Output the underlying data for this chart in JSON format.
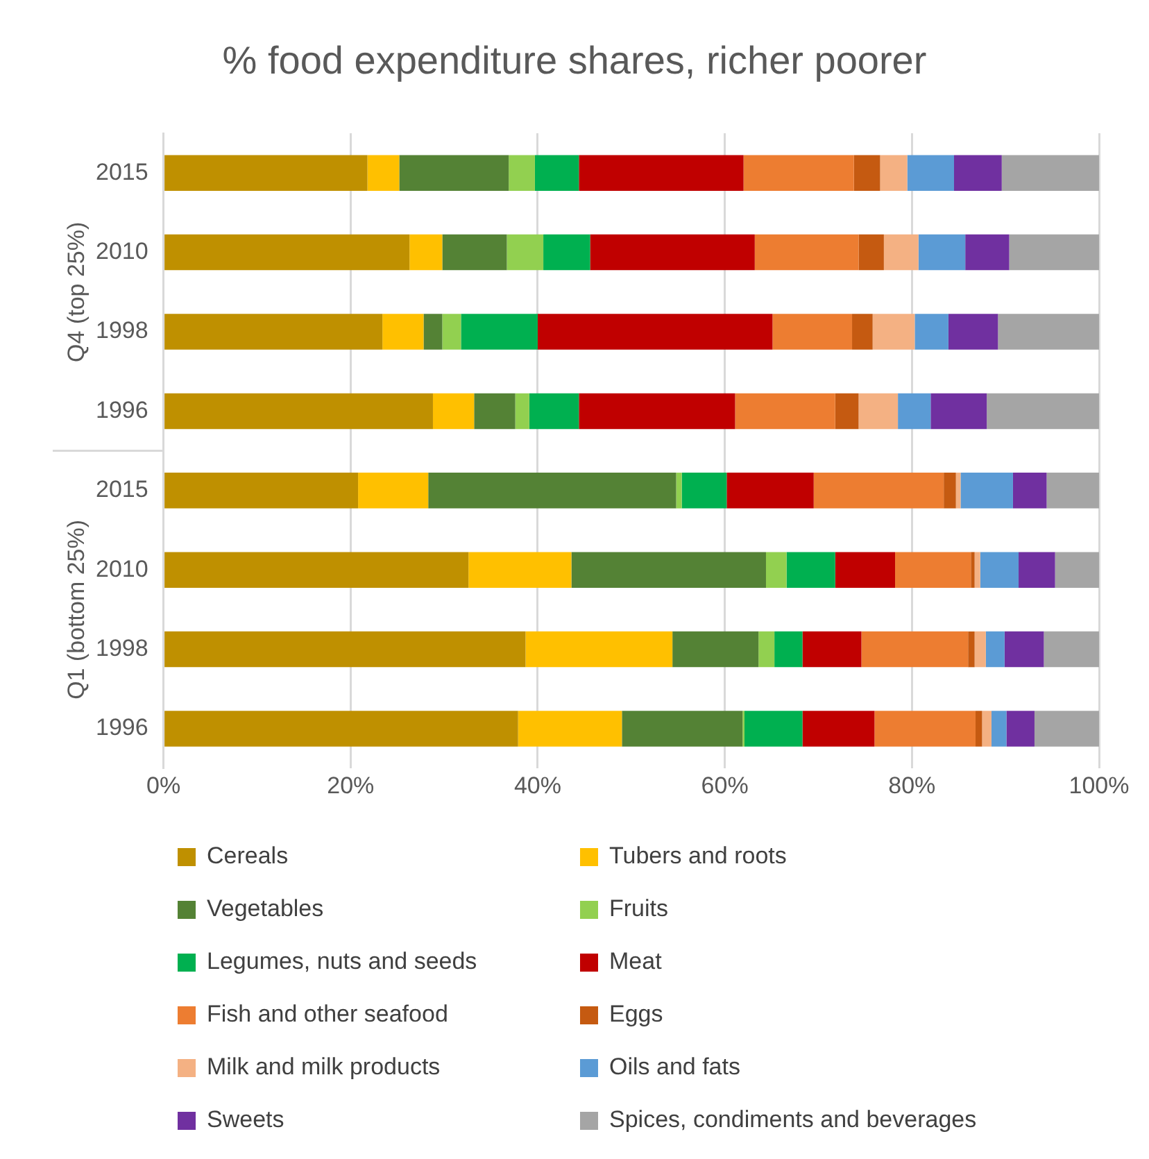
{
  "chart_data": {
    "type": "bar",
    "orientation": "horizontal",
    "stacked": true,
    "title": "% food expenditure shares, richer poorer",
    "categories": [
      "2015",
      "2010",
      "1998",
      "1996",
      "2015",
      "2010",
      "1998",
      "1996"
    ],
    "annotations": [
      "Q4 (top 25%)",
      "Q1 (bottom 25%)"
    ],
    "series": [
      {
        "name": "Cereals",
        "color": "#bf9000",
        "values": [
          21.8,
          26.3,
          23.4,
          28.8,
          20.8,
          32.6,
          38.7,
          37.9
        ]
      },
      {
        "name": "Tubers and roots",
        "color": "#ffc000",
        "values": [
          3.4,
          3.5,
          4.4,
          4.4,
          7.5,
          11.0,
          15.7,
          11.1
        ]
      },
      {
        "name": "Vegetables",
        "color": "#548235",
        "values": [
          11.7,
          6.9,
          2.0,
          4.4,
          26.5,
          20.8,
          9.2,
          12.9
        ]
      },
      {
        "name": "Fruits",
        "color": "#92d050",
        "values": [
          2.8,
          3.9,
          2.0,
          1.5,
          0.6,
          2.2,
          1.7,
          0.2
        ]
      },
      {
        "name": "Legumes, nuts and seeds",
        "color": "#00b050",
        "values": [
          4.7,
          5.0,
          8.2,
          5.3,
          4.8,
          5.2,
          3.0,
          6.2
        ]
      },
      {
        "name": "Meat",
        "color": "#c00000",
        "values": [
          17.6,
          17.6,
          25.1,
          16.7,
          9.3,
          6.4,
          6.3,
          7.7
        ]
      },
      {
        "name": "Fish and other seafood",
        "color": "#ed7d31",
        "values": [
          11.8,
          11.1,
          8.5,
          10.7,
          13.9,
          8.1,
          11.4,
          10.8
        ]
      },
      {
        "name": "Eggs",
        "color": "#c55a11",
        "values": [
          2.8,
          2.7,
          2.2,
          2.5,
          1.3,
          0.4,
          0.7,
          0.7
        ]
      },
      {
        "name": "Milk and milk products",
        "color": "#f4b183",
        "values": [
          2.9,
          3.7,
          4.5,
          4.2,
          0.5,
          0.6,
          1.2,
          1.0
        ]
      },
      {
        "name": "Oils and fats",
        "color": "#5b9bd5",
        "values": [
          5.0,
          5.0,
          3.6,
          3.5,
          5.6,
          4.1,
          2.0,
          1.6
        ]
      },
      {
        "name": "Sweets",
        "color": "#7030a0",
        "values": [
          5.1,
          4.7,
          5.3,
          6.0,
          3.6,
          3.9,
          4.2,
          3.0
        ]
      },
      {
        "name": "Spices, condiments and beverages",
        "color": "#a5a5a5",
        "values": [
          10.4,
          9.6,
          10.8,
          12.0,
          5.6,
          4.7,
          5.9,
          6.9
        ]
      }
    ],
    "xlim": [
      0,
      100
    ],
    "xticks": [
      {
        "value": 0,
        "label": "0%"
      },
      {
        "value": 20,
        "label": "20%"
      },
      {
        "value": 40,
        "label": "40%"
      },
      {
        "value": 60,
        "label": "60%"
      },
      {
        "value": 80,
        "label": "80%"
      },
      {
        "value": 100,
        "label": "100%"
      }
    ],
    "grid": "x",
    "legend": "bottom"
  }
}
